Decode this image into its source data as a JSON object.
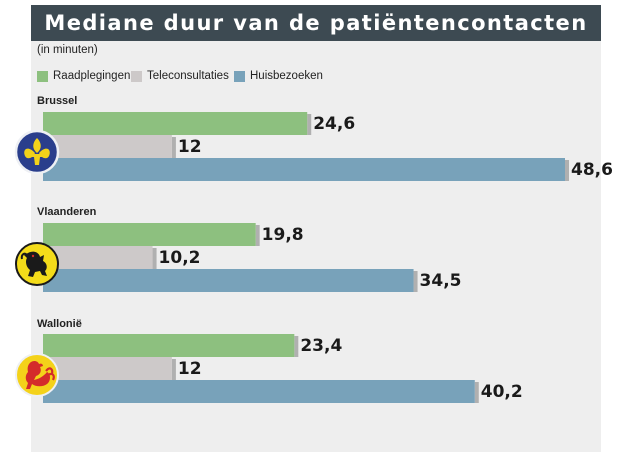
{
  "title": "Mediane duur van de patiëntencontacten",
  "unit_note": "(in minuten)",
  "colors": {
    "title_background": "#3d4a52",
    "panel_background": "#eeeeee",
    "raadplegingen": "#8dc07f",
    "teleconsultaties": "#cdc9c9",
    "huisbezoeken": "#78a2ba",
    "bar_shadow": "#b0b0b0"
  },
  "chart_data": {
    "type": "bar",
    "orientation": "horizontal",
    "title": "Mediane duur van de patiëntencontacten",
    "subtitle": "(in minuten)",
    "categories": [
      "Brussel",
      "Vlaanderen",
      "Wallonië"
    ],
    "series": [
      {
        "name": "Raadplegingen",
        "values": [
          24.6,
          19.8,
          23.4
        ],
        "labels": [
          "24,6",
          "19,8",
          "23,4"
        ],
        "color": "#8dc07f"
      },
      {
        "name": "Teleconsultaties",
        "values": [
          12,
          10.2,
          12
        ],
        "labels": [
          "12",
          "10,2",
          "12"
        ],
        "color": "#cdc9c9"
      },
      {
        "name": "Huisbezoeken",
        "values": [
          48.6,
          34.5,
          40.2
        ],
        "labels": [
          "48,6",
          "34,5",
          "40,2"
        ],
        "color": "#78a2ba"
      }
    ],
    "xlim": [
      0,
      48.6
    ],
    "legend": "top-left",
    "grid": false,
    "region_icons": [
      "brussels-iris-icon",
      "flemish-lion-icon",
      "walloon-rooster-icon"
    ]
  }
}
